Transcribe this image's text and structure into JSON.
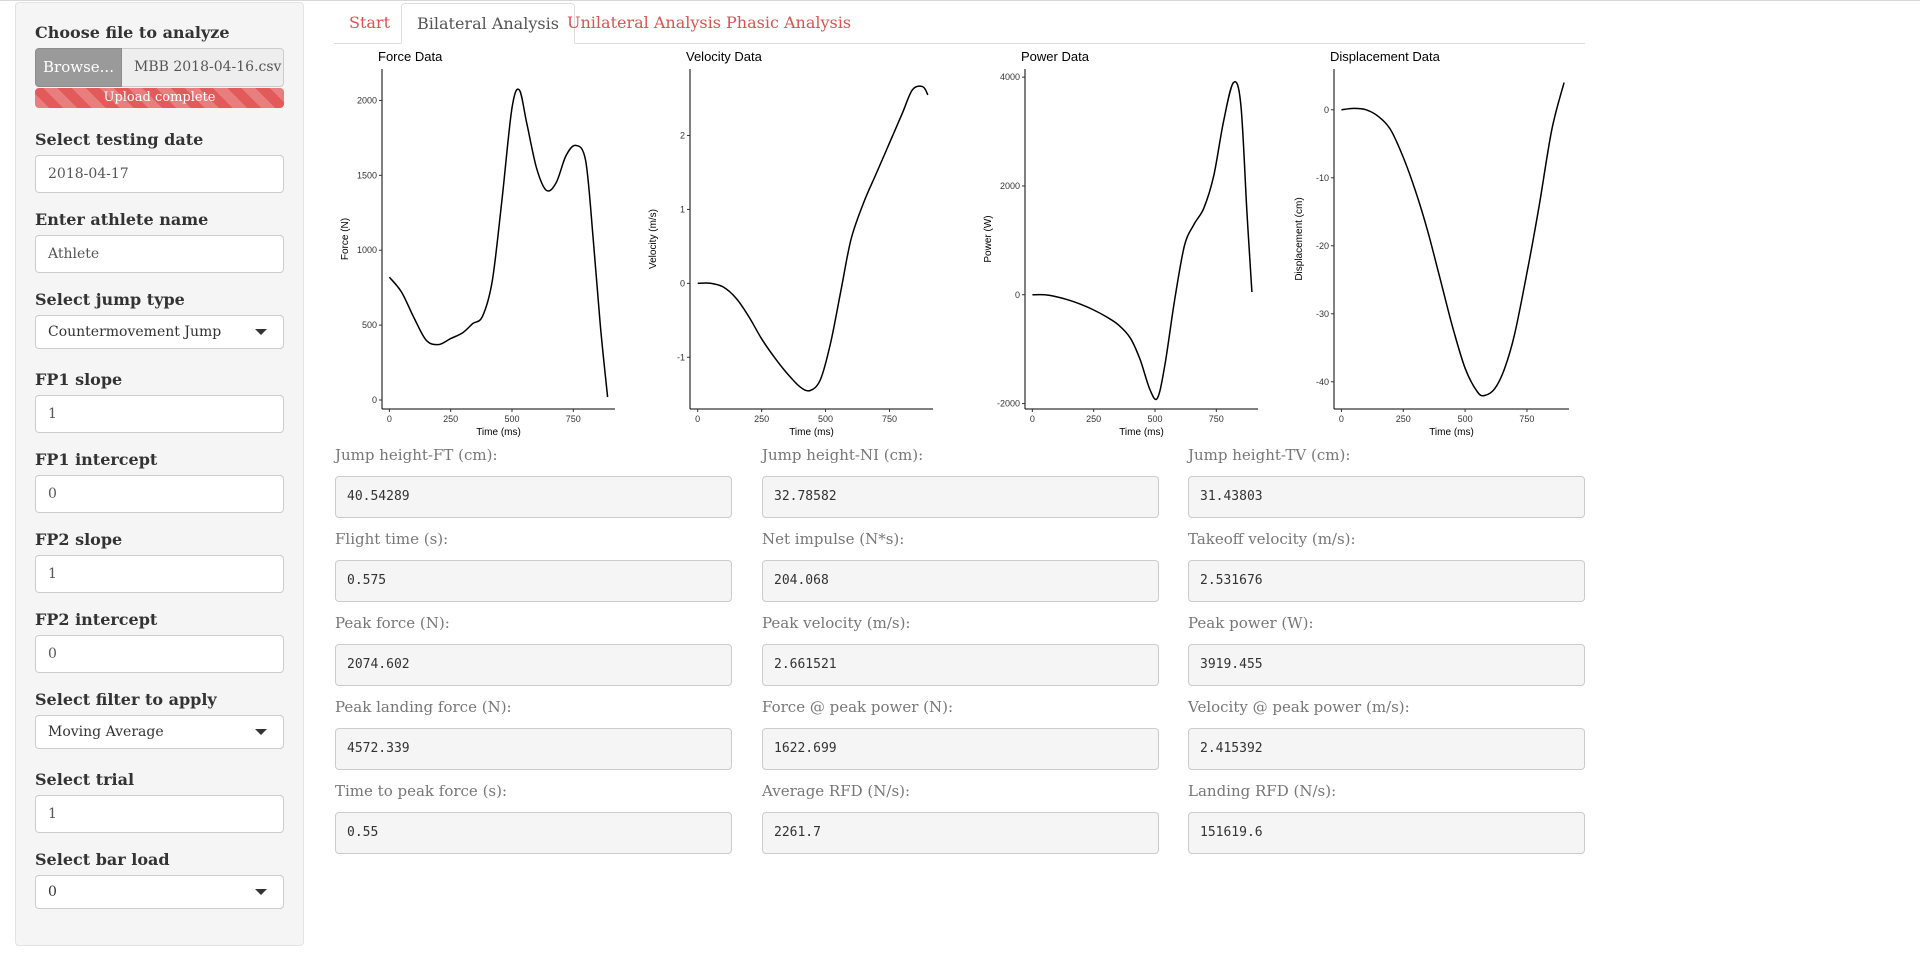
{
  "sidebar": {
    "file_label": "Choose file to analyze",
    "browse_label": "Browse...",
    "file_name": "MBB 2018-04-16.csv",
    "upload_status": "Upload complete",
    "date_label": "Select testing date",
    "date_value": "2018-04-17",
    "athlete_label": "Enter athlete name",
    "athlete_value": "Athlete",
    "jump_type_label": "Select jump type",
    "jump_type_value": "Countermovement Jump",
    "fp1_slope_label": "FP1 slope",
    "fp1_slope_value": "1",
    "fp1_intercept_label": "FP1 intercept",
    "fp1_intercept_value": "0",
    "fp2_slope_label": "FP2 slope",
    "fp2_slope_value": "1",
    "fp2_intercept_label": "FP2 intercept",
    "fp2_intercept_value": "0",
    "filter_label": "Select filter to apply",
    "filter_value": "Moving Average",
    "trial_label": "Select trial",
    "trial_value": "1",
    "bar_load_label": "Select bar load",
    "bar_load_value": "0"
  },
  "tabs": [
    {
      "label": "Start",
      "active": false
    },
    {
      "label": "Bilateral Analysis",
      "active": true
    },
    {
      "label": "Unilateral Analysis",
      "active": false
    },
    {
      "label": "Phasic Analysis",
      "active": false
    }
  ],
  "chart_data": [
    {
      "type": "line",
      "title": "Force Data",
      "xlabel": "Time (ms)",
      "ylabel": "Force (N)",
      "xlim": [
        -30,
        920
      ],
      "ylim": [
        -60,
        2210
      ],
      "xticks": [
        0,
        250,
        500,
        750
      ],
      "yticks": [
        0,
        500,
        1000,
        1500,
        2000
      ],
      "grid": false,
      "x": [
        0,
        50,
        100,
        150,
        200,
        250,
        300,
        340,
        380,
        420,
        460,
        500,
        530,
        560,
        600,
        640,
        680,
        720,
        760,
        800,
        830,
        860,
        890
      ],
      "y": [
        820,
        720,
        550,
        400,
        370,
        410,
        450,
        510,
        560,
        800,
        1350,
        1950,
        2070,
        1850,
        1550,
        1400,
        1450,
        1630,
        1700,
        1600,
        1100,
        500,
        20
      ]
    },
    {
      "type": "line",
      "title": "Velocity Data",
      "xlabel": "Time (ms)",
      "ylabel": "Velocity (m/s)",
      "xlim": [
        -30,
        920
      ],
      "ylim": [
        -1.7,
        2.9
      ],
      "xticks": [
        0,
        250,
        500,
        750
      ],
      "yticks": [
        -1,
        0,
        1,
        2
      ],
      "grid": false,
      "x": [
        0,
        50,
        100,
        150,
        200,
        250,
        300,
        350,
        400,
        440,
        480,
        520,
        560,
        600,
        650,
        700,
        750,
        800,
        840,
        880,
        900
      ],
      "y": [
        0,
        0,
        -0.05,
        -0.2,
        -0.45,
        -0.75,
        -1.0,
        -1.22,
        -1.4,
        -1.45,
        -1.3,
        -0.8,
        -0.1,
        0.6,
        1.1,
        1.5,
        1.9,
        2.3,
        2.62,
        2.66,
        2.55
      ]
    },
    {
      "type": "line",
      "title": "Power Data",
      "xlabel": "Time (ms)",
      "ylabel": "Power (W)",
      "xlim": [
        -30,
        920
      ],
      "ylim": [
        -2100,
        4150
      ],
      "xticks": [
        0,
        250,
        500,
        750
      ],
      "yticks": [
        -2000,
        0,
        2000,
        4000
      ],
      "grid": false,
      "x": [
        0,
        50,
        100,
        150,
        200,
        250,
        300,
        350,
        400,
        440,
        480,
        510,
        540,
        580,
        620,
        660,
        700,
        740,
        780,
        820,
        850,
        875,
        895
      ],
      "y": [
        0,
        0,
        -40,
        -100,
        -180,
        -280,
        -400,
        -550,
        -800,
        -1200,
        -1750,
        -1900,
        -1300,
        -100,
        900,
        1300,
        1600,
        2200,
        3200,
        3900,
        3500,
        1500,
        50
      ]
    },
    {
      "type": "line",
      "title": "Displacement Data",
      "xlabel": "Time (ms)",
      "ylabel": "Displacement (cm)",
      "xlim": [
        -30,
        920
      ],
      "ylim": [
        -44,
        6
      ],
      "xticks": [
        0,
        250,
        500,
        750
      ],
      "yticks": [
        -40,
        -30,
        -20,
        -10,
        0
      ],
      "grid": false,
      "x": [
        0,
        50,
        100,
        150,
        200,
        250,
        300,
        350,
        400,
        450,
        500,
        550,
        580,
        620,
        660,
        700,
        750,
        800,
        850,
        900
      ],
      "y": [
        0,
        0.2,
        0,
        -1,
        -3,
        -7,
        -12,
        -18,
        -25,
        -32,
        -38,
        -41.5,
        -42,
        -41,
        -38,
        -33,
        -24,
        -14,
        -3,
        4
      ]
    }
  ],
  "metrics": [
    {
      "label": "Jump height-FT (cm):",
      "value": "40.54289"
    },
    {
      "label": "Jump height-NI (cm):",
      "value": "32.78582"
    },
    {
      "label": "Jump height-TV (cm):",
      "value": "31.43803"
    },
    {
      "label": "Flight time (s):",
      "value": "0.575"
    },
    {
      "label": "Net impulse (N*s):",
      "value": "204.068"
    },
    {
      "label": "Takeoff velocity (m/s):",
      "value": "2.531676"
    },
    {
      "label": "Peak force (N):",
      "value": "2074.602"
    },
    {
      "label": "Peak velocity (m/s):",
      "value": "2.661521"
    },
    {
      "label": "Peak power (W):",
      "value": "3919.455"
    },
    {
      "label": "Peak landing force (N):",
      "value": "4572.339"
    },
    {
      "label": "Force @ peak power (N):",
      "value": "1622.699"
    },
    {
      "label": "Velocity @ peak power (m/s):",
      "value": "2.415392"
    },
    {
      "label": "Time to peak force (s):",
      "value": "0.55"
    },
    {
      "label": "Average RFD (N/s):",
      "value": "2261.7"
    },
    {
      "label": "Landing RFD (N/s):",
      "value": "151619.6"
    }
  ]
}
